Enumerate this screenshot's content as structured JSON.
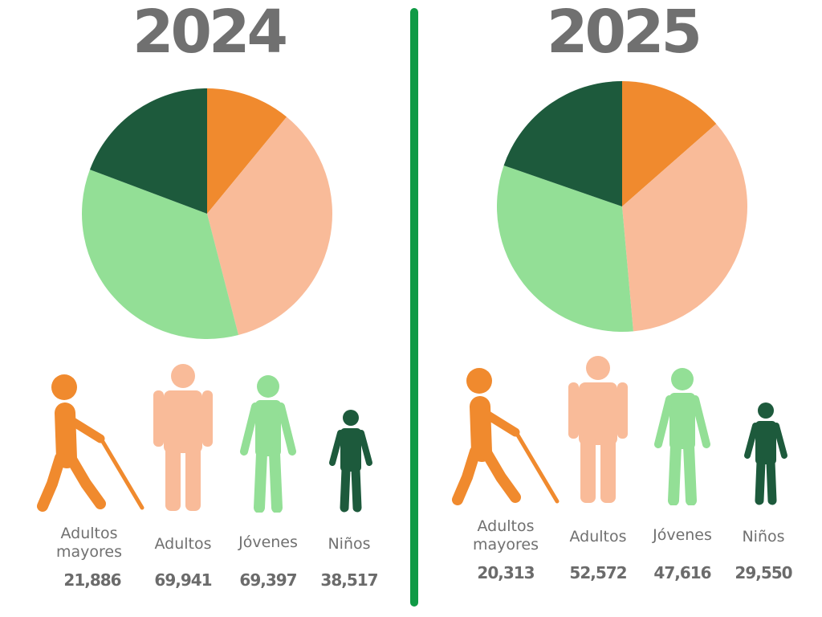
{
  "chart_data": [
    {
      "type": "pie",
      "title": "2024",
      "categories": [
        "Adultos\nmayores",
        "Adultos",
        "Jóvenes",
        "Niños"
      ],
      "values": [
        21886,
        69941,
        69397,
        38517
      ],
      "value_labels": [
        "21,886",
        "69,941",
        "69,397",
        "38,517"
      ],
      "colors": [
        "#f08a2e",
        "#f9bb99",
        "#93df96",
        "#1d5a3c"
      ],
      "start_angle": "top, clockwise",
      "legend": "bottom"
    },
    {
      "type": "pie",
      "title": "2025",
      "categories": [
        "Adultos\nmayores",
        "Adultos",
        "Jóvenes",
        "Niños"
      ],
      "values": [
        20313,
        52572,
        47616,
        29550
      ],
      "value_labels": [
        "20,313",
        "52,572",
        "47,616",
        "29,550"
      ],
      "colors": [
        "#f08a2e",
        "#f9bb99",
        "#93df96",
        "#1d5a3c"
      ],
      "start_angle": "top, clockwise",
      "legend": "bottom"
    }
  ],
  "divider_color": "#0f9a45",
  "icons": [
    "elderly-person-icon",
    "adult-person-icon",
    "young-person-icon",
    "child-person-icon"
  ]
}
